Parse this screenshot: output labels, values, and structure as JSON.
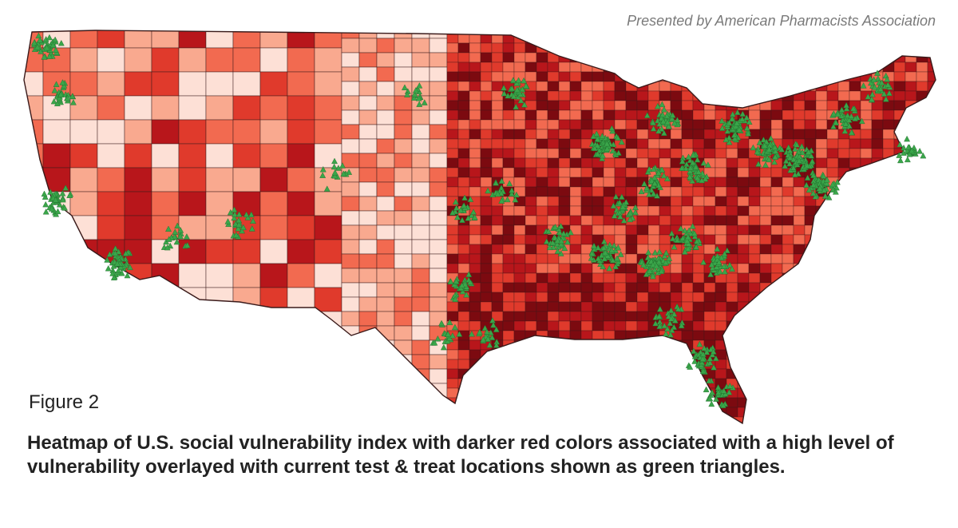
{
  "credit": "Presented by American Pharmacists Association",
  "figure_label": "Figure 2",
  "caption": "Heatmap of U.S. social vulnerability index with darker red colors associated with a high level of vulnerability overlayed with current test & treat locations shown as green triangles.",
  "colors": {
    "vulnerability_scale": [
      "#fde0d6",
      "#f9a98f",
      "#f26a50",
      "#e03a2c",
      "#b8161b",
      "#7c0a10"
    ],
    "marker": "#3aa64a",
    "marker_stroke": "#1f6b2b",
    "county_border": "#3a1a1a"
  },
  "marker_symbol": "triangle"
}
